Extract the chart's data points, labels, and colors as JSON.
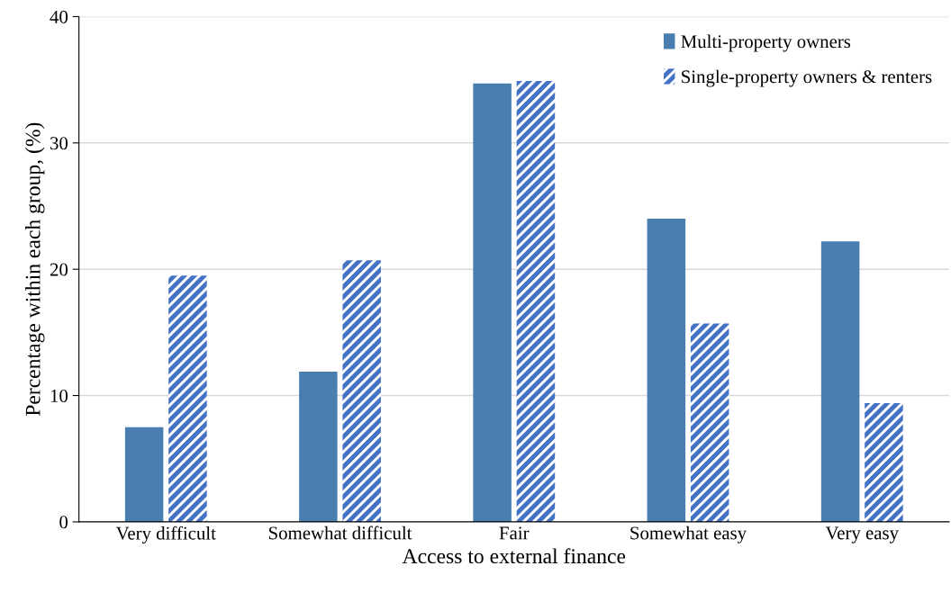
{
  "chart_data": {
    "type": "bar",
    "xlabel": "Access to external finance",
    "ylabel": "Percentage within each group, (%)",
    "categories": [
      "Very difficult",
      "Somewhat difficult",
      "Fair",
      "Somewhat easy",
      "Very easy"
    ],
    "series": [
      {
        "name": "Multi-property owners",
        "color": "#4a7eb0",
        "values": [
          7.5,
          11.9,
          34.7,
          24.0,
          22.2
        ]
      },
      {
        "name": "Single-property owners & renters",
        "color": "#4472c4",
        "values": [
          19.5,
          20.7,
          34.9,
          15.7,
          9.4
        ]
      }
    ],
    "ylim": [
      0,
      40
    ],
    "yticks": [
      0,
      10,
      20,
      30,
      40
    ],
    "grid": "y",
    "legend": "top right"
  }
}
